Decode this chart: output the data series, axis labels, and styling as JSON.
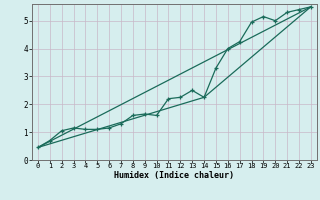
{
  "xlabel": "Humidex (Indice chaleur)",
  "bg_color": "#d6eeee",
  "grid_color": "#c8b8c8",
  "line_color": "#1a6b5a",
  "xlim": [
    -0.5,
    23.5
  ],
  "ylim": [
    0,
    5.6
  ],
  "xticks": [
    0,
    1,
    2,
    3,
    4,
    5,
    6,
    7,
    8,
    9,
    10,
    11,
    12,
    13,
    14,
    15,
    16,
    17,
    18,
    19,
    20,
    21,
    22,
    23
  ],
  "yticks": [
    0,
    1,
    2,
    3,
    4,
    5
  ],
  "line1_x": [
    0,
    1,
    2,
    3,
    4,
    5,
    6,
    7,
    8,
    9,
    10,
    11,
    12,
    13,
    14,
    15,
    16,
    17,
    18,
    19,
    20,
    21,
    22,
    23
  ],
  "line1_y": [
    0.45,
    0.7,
    1.05,
    1.15,
    1.1,
    1.1,
    1.15,
    1.3,
    1.6,
    1.65,
    1.6,
    2.2,
    2.25,
    2.5,
    2.25,
    3.3,
    4.0,
    4.25,
    4.95,
    5.15,
    5.0,
    5.3,
    5.4,
    5.5
  ],
  "line2_x": [
    0,
    23
  ],
  "line2_y": [
    0.45,
    5.5
  ],
  "line3_x": [
    0,
    14,
    23
  ],
  "line3_y": [
    0.45,
    2.25,
    5.5
  ],
  "xlabel_fontsize": 6,
  "tick_fontsize": 5,
  "ytick_fontsize": 5.5
}
